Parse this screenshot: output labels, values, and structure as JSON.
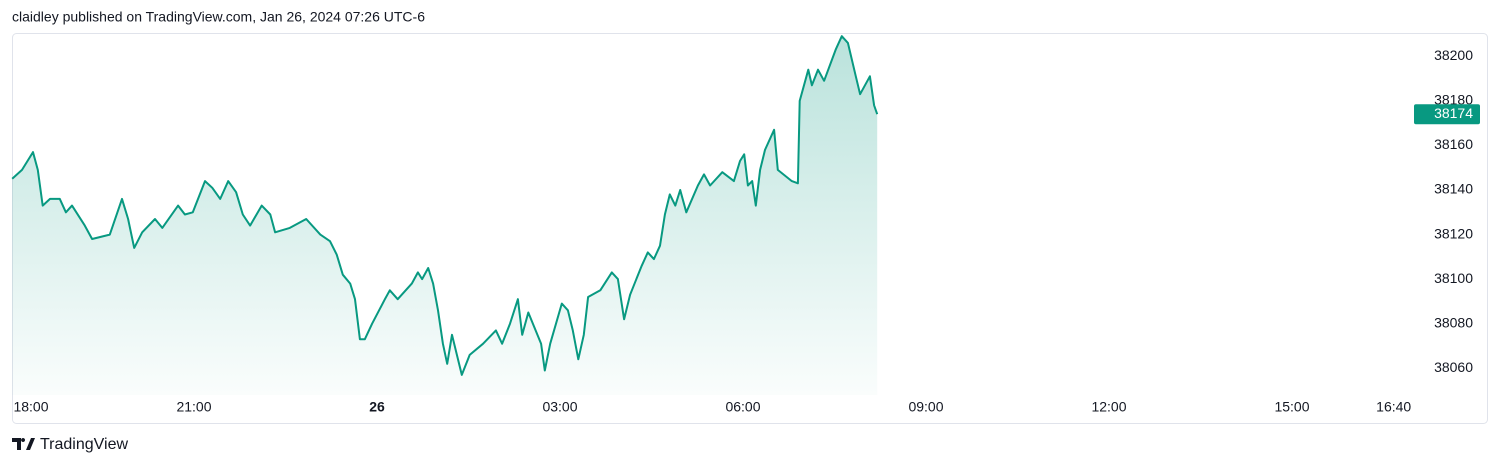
{
  "header": "claidley published on TradingView.com, Jan 26, 2024 07:26 UTC-6",
  "footer": "TradingView",
  "chart_data": {
    "type": "line",
    "x": [
      0.02,
      0.18,
      0.36,
      0.44,
      0.52,
      0.64,
      0.8,
      0.9,
      1.0,
      1.21,
      1.33,
      1.62,
      1.82,
      1.92,
      2.02,
      2.15,
      2.36,
      2.48,
      2.74,
      2.85,
      2.98,
      3.18,
      3.3,
      3.43,
      3.56,
      3.69,
      3.8,
      3.92,
      4.11,
      4.25,
      4.33,
      4.57,
      4.84,
      5.07,
      5.23,
      5.34,
      5.44,
      5.56,
      5.64,
      5.72,
      5.8,
      5.92,
      6.13,
      6.21,
      6.34,
      6.57,
      6.67,
      6.74,
      6.84,
      6.92,
      7.0,
      7.08,
      7.15,
      7.23,
      7.31,
      7.39,
      7.52,
      7.74,
      7.95,
      8.05,
      8.18,
      8.31,
      8.38,
      8.48,
      8.69,
      8.75,
      8.84,
      9.03,
      9.13,
      9.21,
      9.3,
      9.39,
      9.46,
      9.66,
      9.85,
      9.95,
      10.05,
      10.15,
      10.34,
      10.44,
      10.54,
      10.64,
      10.72,
      10.8,
      10.89,
      10.97,
      11.07,
      11.26,
      11.36,
      11.46,
      11.66,
      11.85,
      11.95,
      12.02,
      12.08,
      12.15,
      12.21,
      12.28,
      12.36,
      12.51,
      12.57,
      12.8,
      12.9,
      12.93,
      13.07,
      13.13,
      13.23,
      13.33,
      13.52,
      13.62,
      13.72,
      13.85,
      13.92,
      14.08,
      14.15,
      14.2
    ],
    "series": [
      {
        "color": "#089981",
        "values": [
          38145,
          38149,
          38157,
          38149,
          38133,
          38136,
          38136,
          38130,
          38133,
          38124,
          38118,
          38120,
          38136,
          38127,
          38114,
          38121,
          38127,
          38123,
          38133,
          38129,
          38130,
          38144,
          38141,
          38136,
          38144,
          38139,
          38129,
          38124,
          38133,
          38129,
          38121,
          38123,
          38127,
          38120,
          38117,
          38111,
          38102,
          38098,
          38091,
          38073,
          38073,
          38080,
          38091,
          38095,
          38091,
          38098,
          38103,
          38100,
          38105,
          38098,
          38086,
          38071,
          38062,
          38075,
          38066,
          38057,
          38066,
          38071,
          38077,
          38071,
          38080,
          38091,
          38075,
          38085,
          38071,
          38059,
          38071,
          38089,
          38086,
          38077,
          38064,
          38075,
          38092,
          38095,
          38103,
          38100,
          38082,
          38093,
          38106,
          38112,
          38109,
          38115,
          38129,
          38138,
          38133,
          38140,
          38130,
          38142,
          38147,
          38142,
          38148,
          38144,
          38153,
          38156,
          38142,
          38144,
          38133,
          38149,
          38158,
          38167,
          38149,
          38144,
          38143,
          38180,
          38194,
          38187,
          38194,
          38189,
          38203,
          38209,
          38206,
          38191,
          38183,
          38191,
          38178,
          38174
        ]
      }
    ],
    "xlim": [
      0,
      23
    ],
    "xticks": [
      {
        "value": 0,
        "label": "18:00"
      },
      {
        "value": 3,
        "label": "21:00"
      },
      {
        "value": 6,
        "label": "26"
      },
      {
        "value": 9,
        "label": "03:00"
      },
      {
        "value": 12,
        "label": "06:00"
      },
      {
        "value": 15,
        "label": "09:00"
      },
      {
        "value": 18,
        "label": "12:00"
      },
      {
        "value": 21,
        "label": "15:00"
      },
      {
        "value": 22.667,
        "label": "16:40"
      }
    ],
    "ylim": [
      38048,
      38210
    ],
    "yticks": [
      38060,
      38080,
      38100,
      38120,
      38140,
      38160,
      38180,
      38200
    ]
  }
}
